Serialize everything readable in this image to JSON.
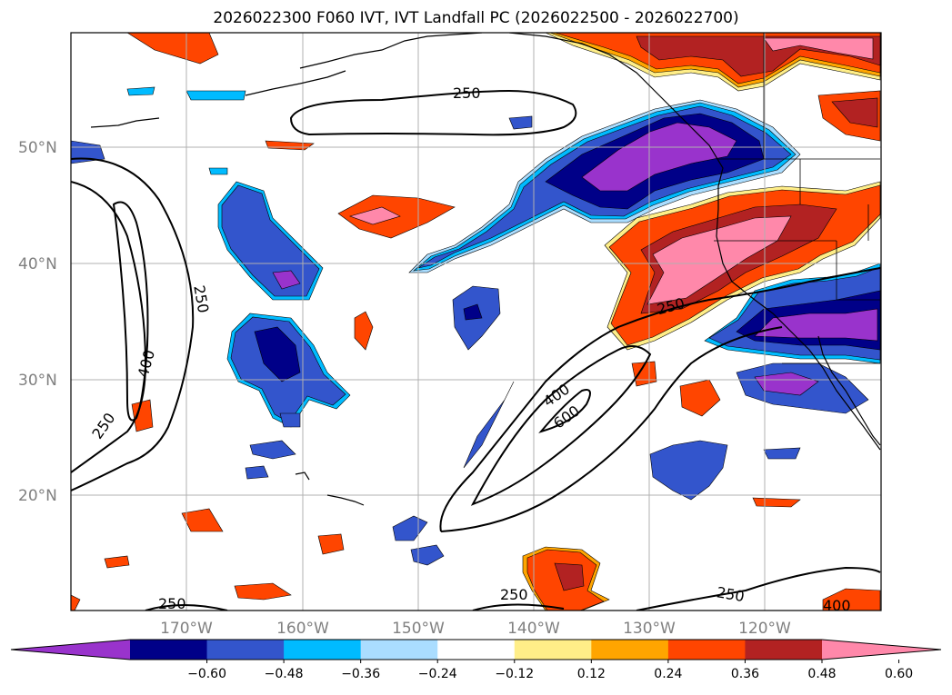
{
  "title": "2026022300 F060 IVT, IVT Landfall PC (2026022500 - 2026022700)",
  "lat_labels": [
    "50°N",
    "40°N",
    "30°N",
    "20°N"
  ],
  "lon_labels": [
    "170°W",
    "160°W",
    "150°W",
    "140°W",
    "130°W",
    "120°W"
  ],
  "contour_labels": [
    "250",
    "250",
    "400",
    "250",
    "250",
    "400",
    "600",
    "250",
    "250",
    "250",
    "400"
  ],
  "colorbar": {
    "colors": [
      "#9933cc",
      "#000088",
      "#3355cc",
      "#00bbff",
      "#aaddff",
      "#ffffff",
      "#ffee88",
      "#ffa500",
      "#ff4500",
      "#b22222",
      "#ff88aa"
    ],
    "ticks": [
      "−0.60",
      "−0.48",
      "−0.36",
      "−0.24",
      "−0.12",
      "0.12",
      "0.24",
      "0.36",
      "0.48",
      "0.60"
    ]
  },
  "colors": {
    "pink": "#ff88aa",
    "darkred": "#b22222",
    "red": "#ff4500",
    "orange": "#ffa500",
    "yellow": "#ffee88",
    "purple": "#9933cc",
    "navy": "#000088",
    "blue": "#3355cc",
    "cyan": "#00bbff",
    "lightblue": "#aaddff"
  }
}
